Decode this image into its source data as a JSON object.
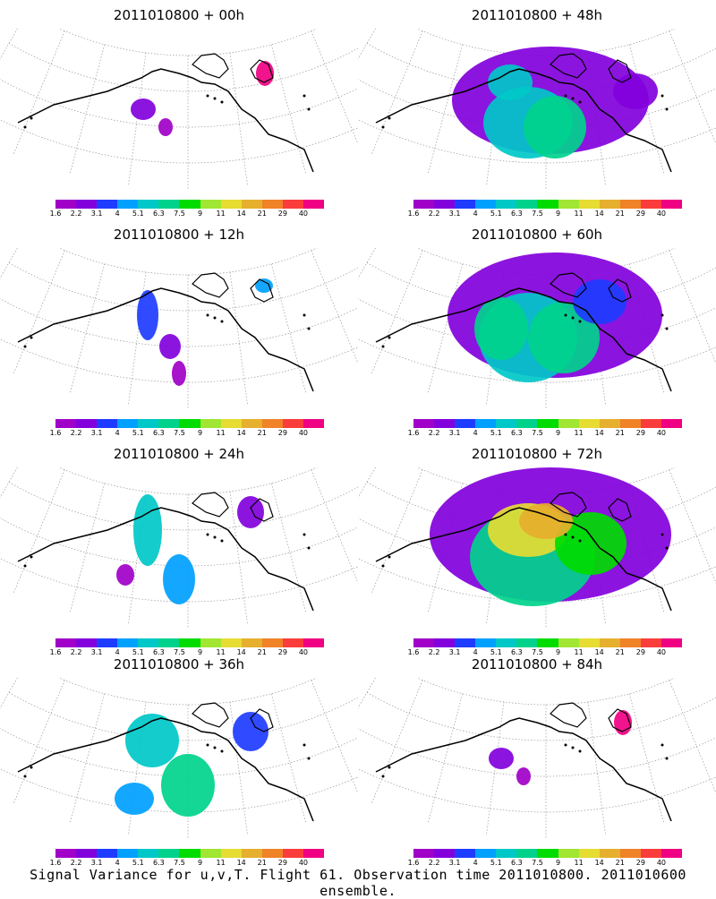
{
  "panels": [
    {
      "title": "2011010800 + 00h",
      "level": 0
    },
    {
      "title": "2011010800 + 48h",
      "level": 5
    },
    {
      "title": "2011010800 + 12h",
      "level": 1
    },
    {
      "title": "2011010800 + 60h",
      "level": 6
    },
    {
      "title": "2011010800 + 24h",
      "level": 2
    },
    {
      "title": "2011010800 + 72h",
      "level": 7
    },
    {
      "title": "2011010800 + 36h",
      "level": 3
    },
    {
      "title": "2011010800 + 84h",
      "level": 8
    }
  ],
  "colorbar": {
    "colors": [
      "#a000c8",
      "#8200dc",
      "#1e3cff",
      "#00a0ff",
      "#00c8c8",
      "#00d28c",
      "#00dc00",
      "#a0e632",
      "#e6dc32",
      "#e6af2d",
      "#f08228",
      "#fa3c3c",
      "#f00082"
    ],
    "labels": [
      "1.6",
      "2.2",
      "3.1",
      "4",
      "5.1",
      "6.3",
      "7.5",
      "9",
      "11",
      "14",
      "21",
      "29",
      "40"
    ]
  },
  "caption": "Signal Variance for u,v,T. Flight 61. Observation time 2011010800. 2011010600 ensemble."
}
